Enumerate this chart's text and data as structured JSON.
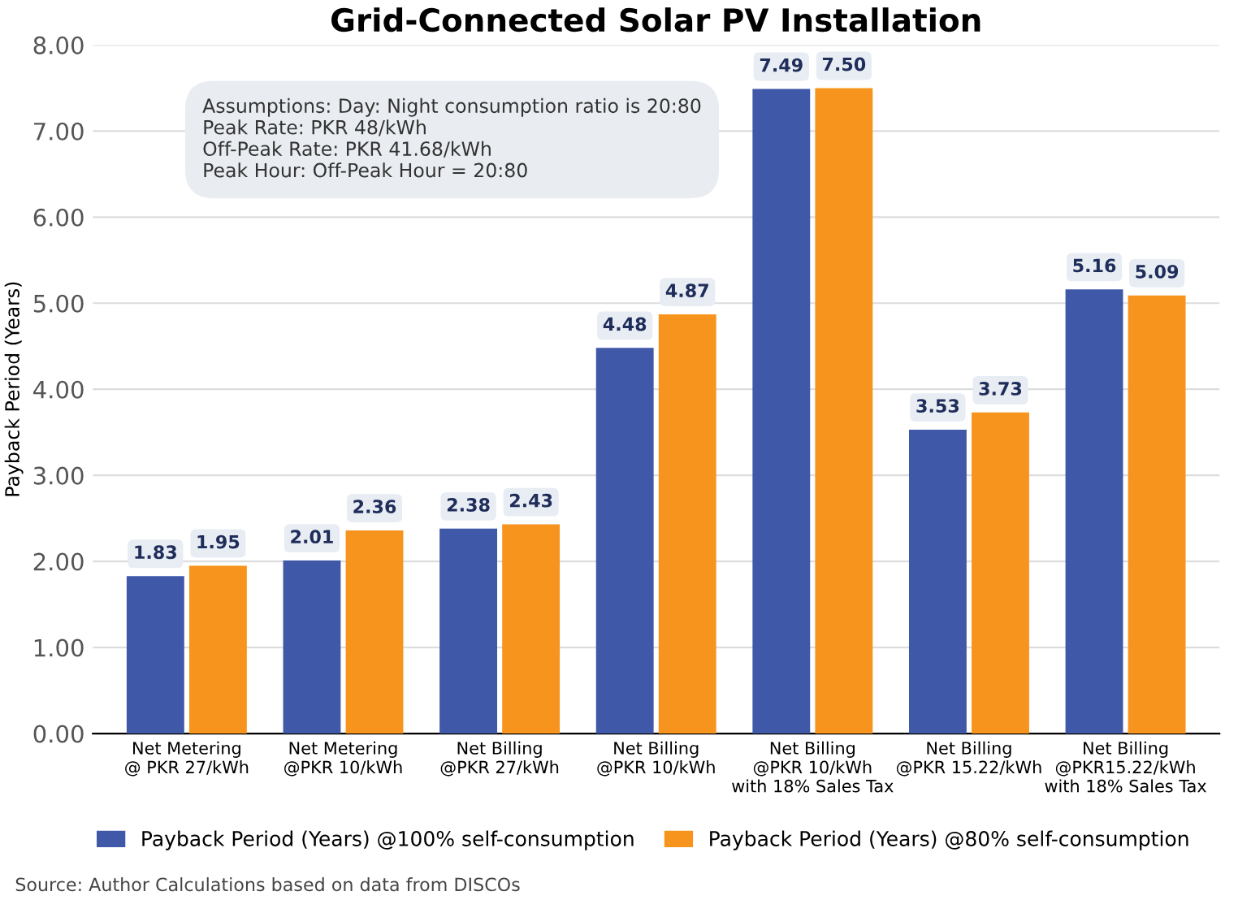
{
  "chart_data": {
    "type": "bar",
    "title": "Grid-Connected Solar PV Installation",
    "ylabel": "Payback Period (Years)",
    "categories": [
      "Net Metering\n@ PKR 27/kWh",
      "Net Metering\n@PKR 10/kWh",
      "Net Billing\n@PKR 27/kWh",
      "Net Billing\n@PKR 10/kWh",
      "Net Billing\n@PKR 10/kWh\nwith 18% Sales Tax",
      "Net Billing\n@PKR 15.22/kWh",
      "Net Billing\n@PKR15.22/kWh\nwith 18% Sales Tax"
    ],
    "series": [
      {
        "name": "Payback Period (Years) @100% self-consumption",
        "color": "#3f59a8",
        "values": [
          1.83,
          2.01,
          2.38,
          4.48,
          7.49,
          3.53,
          5.16
        ],
        "value_labels": [
          "1.83",
          "2.01",
          "2.38",
          "4.48",
          "7.49",
          "3.53",
          "5.16"
        ]
      },
      {
        "name": "Payback Period (Years) @80% self-consumption",
        "color": "#f7941d",
        "values": [
          1.95,
          2.36,
          2.43,
          4.87,
          7.5,
          3.73,
          5.09
        ],
        "value_labels": [
          "1.95",
          "2.36",
          "2.43",
          "4.87",
          "7.50",
          "3.73",
          "5.09"
        ]
      }
    ],
    "ylim": [
      0,
      8
    ],
    "yticks": [
      {
        "value": 0,
        "label": "0.00"
      },
      {
        "value": 1,
        "label": "1.00"
      },
      {
        "value": 2,
        "label": "2.00"
      },
      {
        "value": 3,
        "label": "3.00"
      },
      {
        "value": 4,
        "label": "4.00"
      },
      {
        "value": 5,
        "label": "5.00"
      },
      {
        "value": 6,
        "label": "6.00"
      },
      {
        "value": 7,
        "label": "7.00"
      },
      {
        "value": 8,
        "label": "8.00"
      }
    ],
    "grid": "y",
    "legend": "bottom",
    "annotations": [
      "Assumptions: Day: Night consumption ratio is 20:80\nPeak Rate: PKR 48/kWh\nOff-Peak Rate: PKR 41.68/kWh\nPeak Hour: Off-Peak Hour = 20:80",
      "Source: Author Calculations based on data from DISCOs"
    ]
  }
}
